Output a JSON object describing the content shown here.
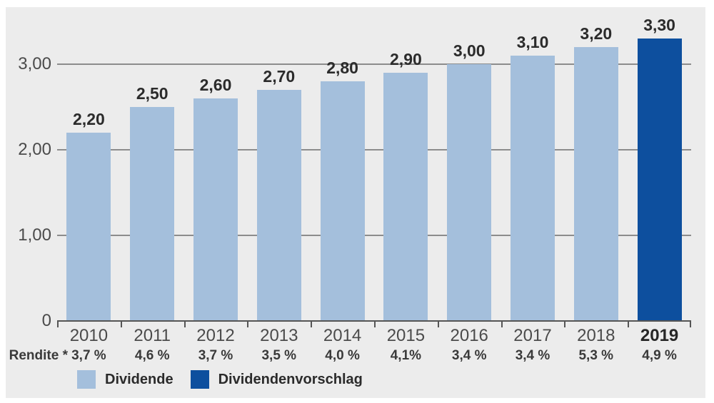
{
  "chart_data": {
    "type": "bar",
    "title": "",
    "xlabel": "",
    "ylabel": "",
    "ylim": [
      0,
      3.75
    ],
    "grid": true,
    "legend_position": "bottom-left",
    "categories": [
      "2010",
      "2011",
      "2012",
      "2013",
      "2014",
      "2015",
      "2016",
      "2017",
      "2018",
      "2019"
    ],
    "bars": [
      {
        "year": "2010",
        "value": 2.2,
        "value_label": "2,20",
        "rendite": "3,7 %",
        "series": "Dividende"
      },
      {
        "year": "2011",
        "value": 2.5,
        "value_label": "2,50",
        "rendite": "4,6 %",
        "series": "Dividende"
      },
      {
        "year": "2012",
        "value": 2.6,
        "value_label": "2,60",
        "rendite": "3,7 %",
        "series": "Dividende"
      },
      {
        "year": "2013",
        "value": 2.7,
        "value_label": "2,70",
        "rendite": "3,5 %",
        "series": "Dividende"
      },
      {
        "year": "2014",
        "value": 2.8,
        "value_label": "2,80",
        "rendite": "4,0 %",
        "series": "Dividende"
      },
      {
        "year": "2015",
        "value": 2.9,
        "value_label": "2,90",
        "rendite": "4,1%",
        "series": "Dividende"
      },
      {
        "year": "2016",
        "value": 3.0,
        "value_label": "3,00",
        "rendite": "3,4 %",
        "series": "Dividende"
      },
      {
        "year": "2017",
        "value": 3.1,
        "value_label": "3,10",
        "rendite": "3,4 %",
        "series": "Dividende"
      },
      {
        "year": "2018",
        "value": 3.2,
        "value_label": "3,20",
        "rendite": "5,3 %",
        "series": "Dividende"
      },
      {
        "year": "2019",
        "value": 3.3,
        "value_label": "3,30",
        "rendite": "4,9 %",
        "series": "Dividendenvorschlag"
      }
    ],
    "y_axis": {
      "ticks": [
        {
          "value": 3,
          "label": "3,00"
        },
        {
          "value": 2,
          "label": "2,00"
        },
        {
          "value": 1,
          "label": "1,00"
        },
        {
          "value": 0,
          "label": "0"
        }
      ]
    },
    "rendite_row_label": "Rendite *",
    "legend": [
      {
        "label": "Dividende",
        "color": "#a4bfdc"
      },
      {
        "label": "Dividendenvorschlag",
        "color": "#0d4f9e"
      }
    ]
  },
  "colors": {
    "page_background": "#ffffff",
    "panel_background": "#ececec",
    "gridline": "#8c8c8c",
    "axis": "#555555",
    "light_bar": "#a4bfdc",
    "dark_bar": "#0d4f9e",
    "text_dark": "#2b2b2b",
    "text_medium": "#4b4b4b"
  }
}
